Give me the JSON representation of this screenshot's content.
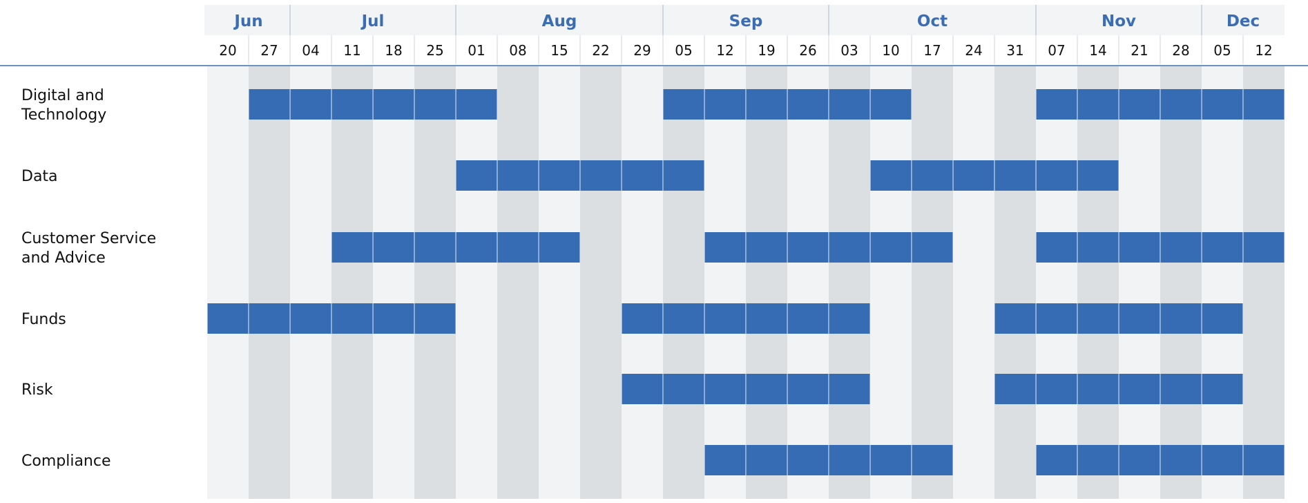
{
  "chart_data": {
    "type": "gantt",
    "title": "",
    "months": [
      {
        "label": "Jun",
        "start": 0,
        "span": 2
      },
      {
        "label": "Jul",
        "start": 2,
        "span": 4
      },
      {
        "label": "Aug",
        "start": 6,
        "span": 5
      },
      {
        "label": "Sep",
        "start": 11,
        "span": 4
      },
      {
        "label": "Oct",
        "start": 15,
        "span": 5
      },
      {
        "label": "Nov",
        "start": 20,
        "span": 4
      },
      {
        "label": "Dec",
        "start": 24,
        "span": 2
      }
    ],
    "weeks": [
      "20",
      "27",
      "04",
      "11",
      "18",
      "25",
      "01",
      "08",
      "15",
      "22",
      "29",
      "05",
      "12",
      "19",
      "26",
      "03",
      "10",
      "17",
      "24",
      "31",
      "07",
      "14",
      "21",
      "28",
      "05",
      "12"
    ],
    "rows": [
      {
        "label": [
          "Digital and",
          "Technology"
        ],
        "active": [
          1,
          2,
          3,
          4,
          5,
          6,
          11,
          12,
          13,
          14,
          15,
          16,
          20,
          21,
          22,
          23,
          24,
          25
        ]
      },
      {
        "label": [
          "Data"
        ],
        "active": [
          6,
          7,
          8,
          9,
          10,
          11,
          16,
          17,
          18,
          19,
          20,
          21
        ]
      },
      {
        "label": [
          "Customer Service",
          "and Advice"
        ],
        "active": [
          3,
          4,
          5,
          6,
          7,
          8,
          12,
          13,
          14,
          15,
          16,
          17,
          20,
          21,
          22,
          23,
          24,
          25
        ]
      },
      {
        "label": [
          "Funds"
        ],
        "active": [
          0,
          1,
          2,
          3,
          4,
          5,
          10,
          11,
          12,
          13,
          14,
          15,
          19,
          20,
          21,
          22,
          23,
          24
        ]
      },
      {
        "label": [
          "Risk"
        ],
        "active": [
          10,
          11,
          12,
          13,
          14,
          15,
          19,
          20,
          21,
          22,
          23,
          24
        ]
      },
      {
        "label": [
          "Compliance"
        ],
        "active": [
          12,
          13,
          14,
          15,
          16,
          17,
          20,
          21,
          22,
          23,
          24,
          25
        ]
      }
    ],
    "colors": {
      "bar": "#356cb3",
      "month_header": "#3a6db4",
      "column_light": "#f2f3f5",
      "column_dark": "#dcdfe2",
      "rule": "#3a6db4"
    }
  }
}
